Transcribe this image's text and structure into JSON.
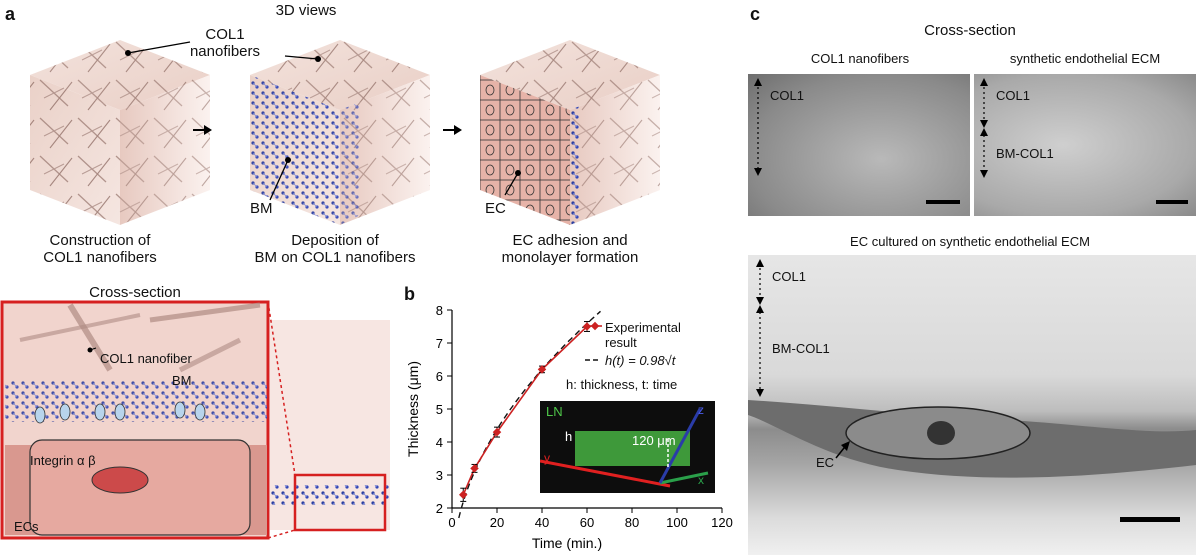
{
  "panel_a": {
    "letter": "a",
    "title": "3D views",
    "col1_callout": "COL1\nnanofibers",
    "bm_label": "BM",
    "ec_label": "EC",
    "step1": "Construction of\nCOL1 nanofibers",
    "step2": "Deposition of\nBM on COL1 nanofibers",
    "step3": "EC adhesion and\nmonolayer formation",
    "cross_section_title": "Cross-section",
    "cs_col1": "COL1 nanofiber",
    "cs_bm": "BM",
    "cs_integrin": "Integrin α β",
    "cs_ecs": "ECs"
  },
  "panel_b": {
    "letter": "b",
    "legend_experimental": "Experimental\nresult",
    "legend_fit": "h(t) = 0.98√t",
    "note": "h: thickness, t: time",
    "inset_ln": "LN",
    "inset_h": "h",
    "inset_dim": "120 μm",
    "inset_axes": [
      "x",
      "y",
      "z"
    ]
  },
  "chart_data": {
    "type": "line",
    "xlabel": "Time (min.)",
    "ylabel": "Thickness (μm)",
    "xlim": [
      0,
      120
    ],
    "ylim": [
      2,
      8
    ],
    "xticks": [
      0,
      20,
      40,
      60,
      80,
      100,
      120
    ],
    "yticks": [
      2,
      3,
      4,
      5,
      6,
      7,
      8
    ],
    "series": [
      {
        "name": "Experimental result",
        "x": [
          5,
          10,
          20,
          40,
          60
        ],
        "y": [
          2.4,
          3.2,
          4.3,
          6.2,
          7.5
        ],
        "err": [
          0.2,
          0.12,
          0.15,
          0.1,
          0.15
        ],
        "color": "#cc2222"
      },
      {
        "name": "h(t) = 0.98√t",
        "style": "dashed",
        "color": "#111111",
        "coef": 0.98
      }
    ]
  },
  "panel_c": {
    "letter": "c",
    "title": "Cross-section",
    "left_title": "COL1 nanofibers",
    "right_title": "synthetic endothelial ECM",
    "left_col1": "COL1",
    "right_col1": "COL1",
    "right_bm": "BM-COL1",
    "bottom_title": "EC cultured on synthetic endothelial ECM",
    "bottom_col1": "COL1",
    "bottom_bm": "BM-COL1",
    "bottom_ec": "EC"
  }
}
